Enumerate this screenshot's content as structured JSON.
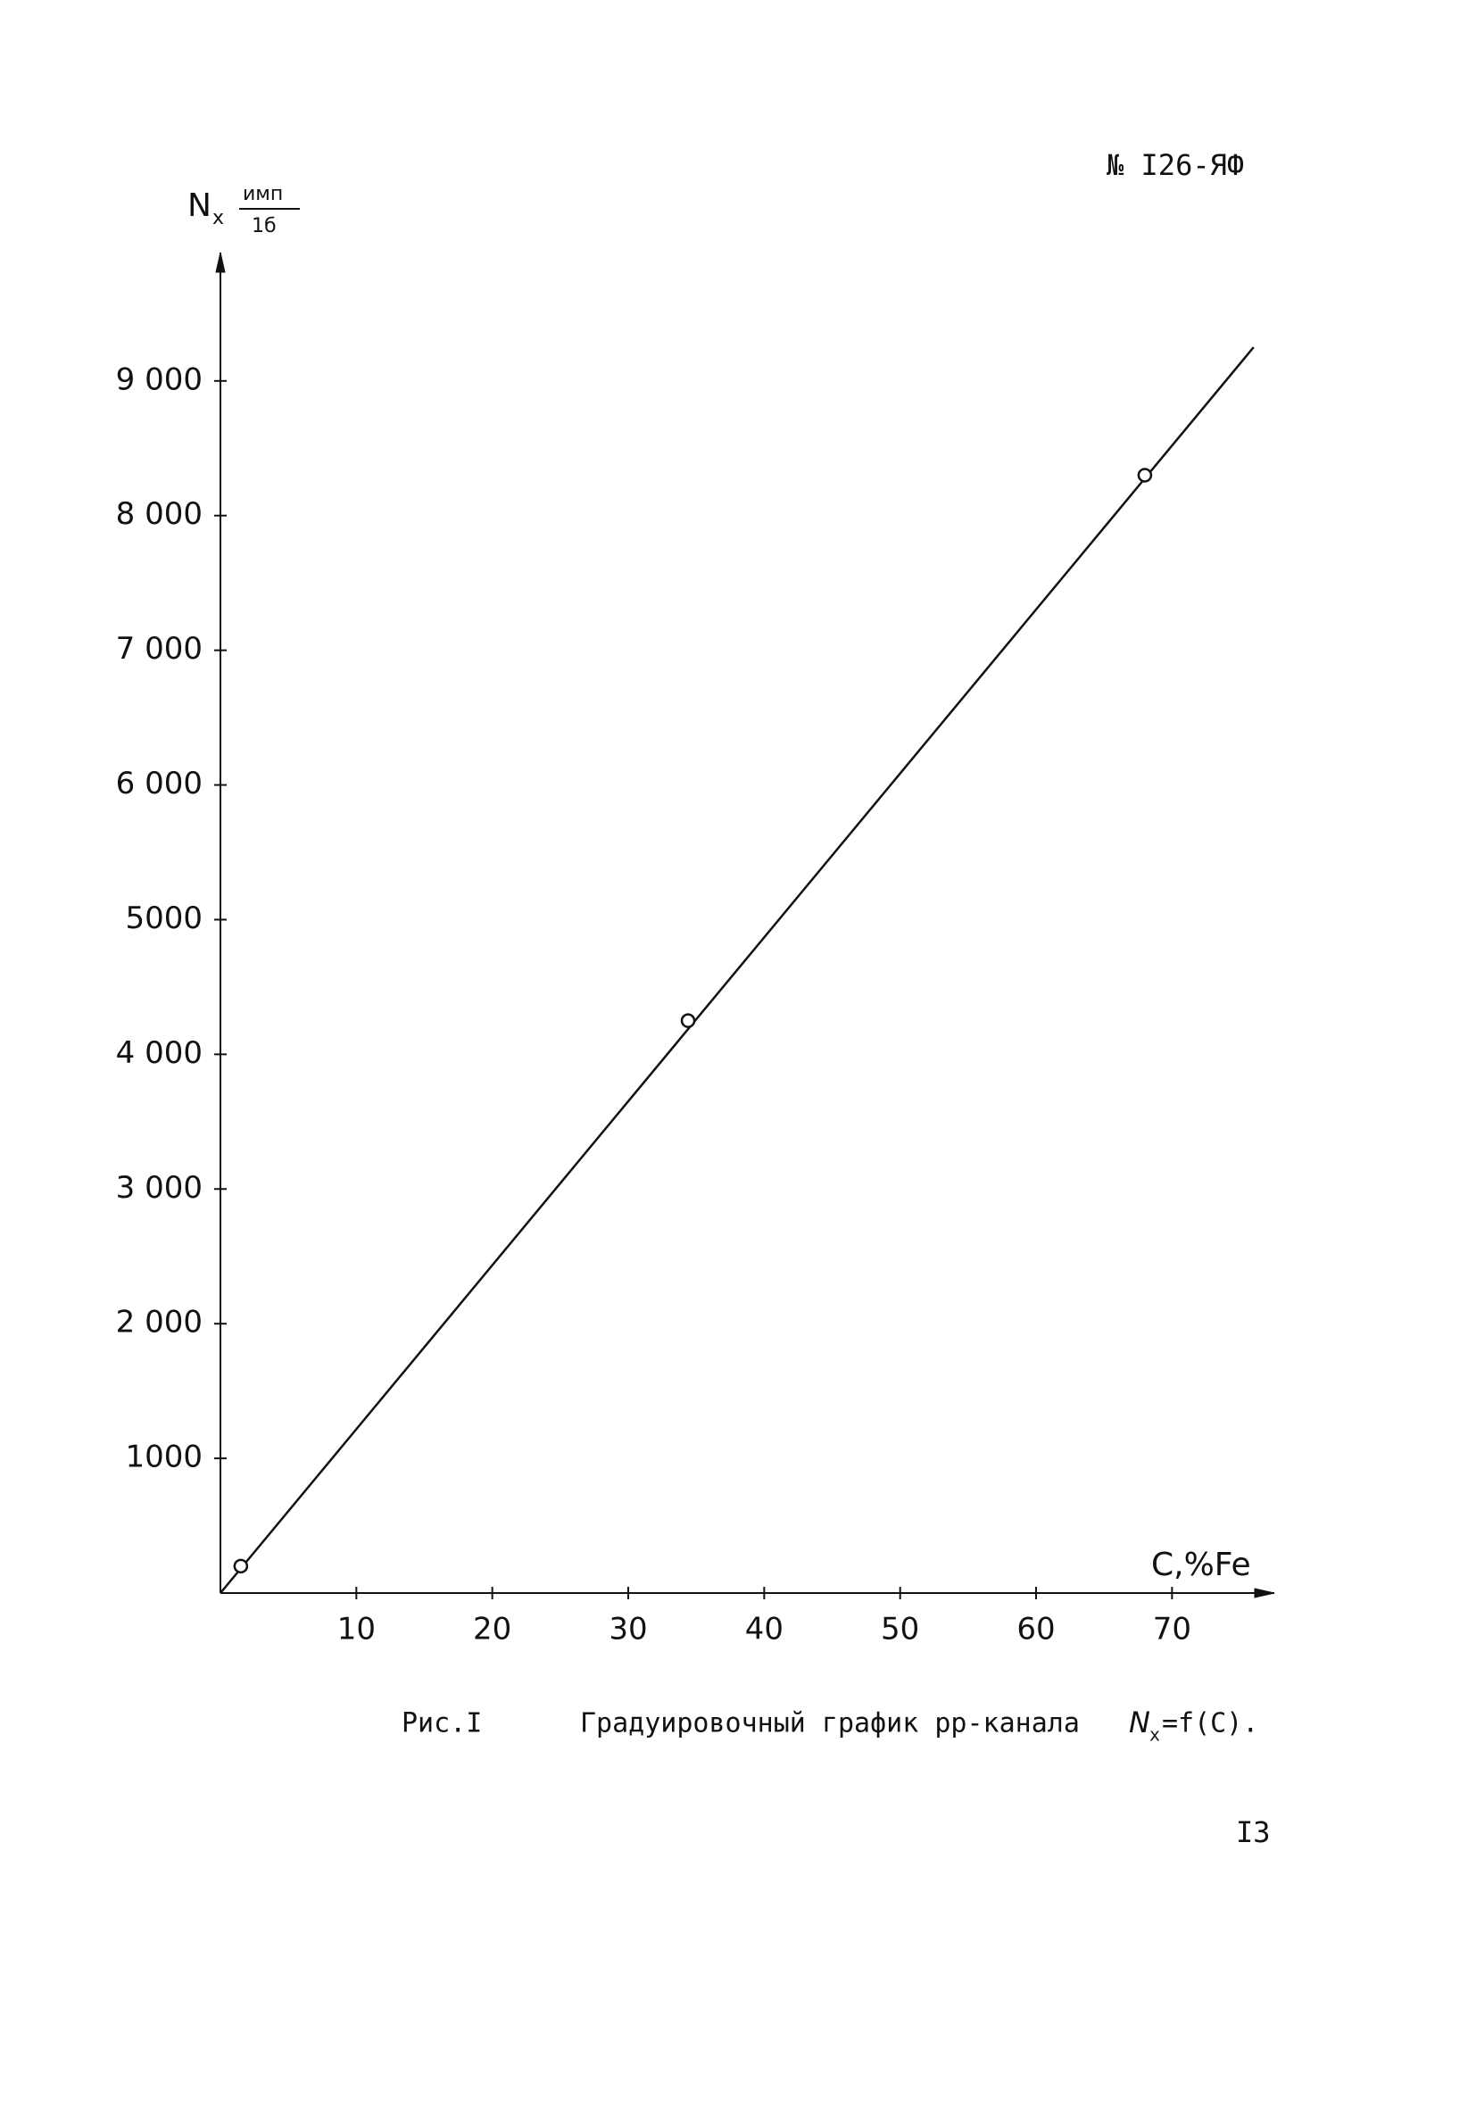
{
  "header": {
    "doc_number": "№ I26-ЯФ"
  },
  "chart_data": {
    "type": "scatter",
    "y_label": {
      "symbol": "N",
      "subscript": "x",
      "unit_numerator": "имп",
      "unit_denominator": "1б"
    },
    "x_label": "C,%Fe",
    "x": [
      1.5,
      34.4,
      68
    ],
    "values": [
      200,
      4250,
      8300
    ],
    "fit_line": {
      "x": [
        0,
        76
      ],
      "values": [
        0,
        9250
      ]
    },
    "color": "#111111",
    "xlim": [
      0,
      77
    ],
    "ylim": [
      0,
      9900
    ],
    "xticks": [
      10,
      20,
      30,
      40,
      50,
      60,
      70
    ],
    "yticks": [
      {
        "value": 1000,
        "label": "1000"
      },
      {
        "value": 2000,
        "label": "2 000"
      },
      {
        "value": 3000,
        "label": "3 000"
      },
      {
        "value": 4000,
        "label": "4 000"
      },
      5000,
      {
        "value": 6000,
        "label": "6 000"
      },
      {
        "value": 7000,
        "label": "7 000"
      },
      {
        "value": 8000,
        "label": "8 000"
      },
      {
        "value": 9000,
        "label": "9 000"
      }
    ]
  },
  "caption": {
    "label": "Рис.I",
    "text": "Градуировочный график pp-канала",
    "formula_symbol": "N",
    "formula_subscript": "x",
    "formula_rest": "=f(C)."
  },
  "page_number": "I3"
}
